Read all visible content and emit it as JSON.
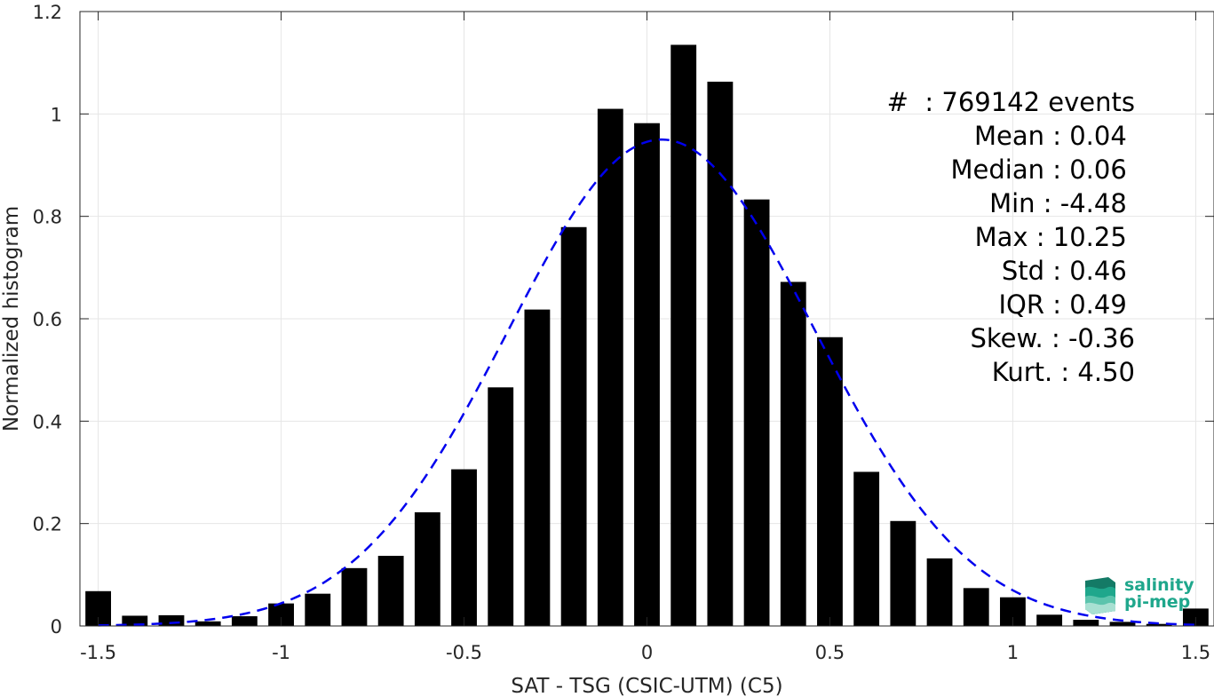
{
  "chart_data": {
    "type": "bar",
    "title": "",
    "xlabel": "SAT - TSG (CSIC-UTM) (C5)",
    "ylabel": "Normalized histogram",
    "xlim": [
      -1.55,
      1.55
    ],
    "ylim": [
      0,
      1.2
    ],
    "xticks": [
      -1.5,
      -1,
      -0.5,
      0,
      0.5,
      1,
      1.5
    ],
    "xtick_labels": [
      "-1.5",
      "-1",
      "-0.5",
      "0",
      "0.5",
      "1",
      "1.5"
    ],
    "yticks": [
      0,
      0.2,
      0.4,
      0.6,
      0.8,
      1,
      1.2
    ],
    "ytick_labels": [
      "0",
      "0.2",
      "0.4",
      "0.6",
      "0.8",
      "1",
      "1.2"
    ],
    "grid": true,
    "bar_width": 0.07,
    "bar_color": "#000000",
    "bins": [
      -1.5,
      -1.4,
      -1.3,
      -1.2,
      -1.1,
      -1.0,
      -0.9,
      -0.8,
      -0.7,
      -0.6,
      -0.5,
      -0.4,
      -0.3,
      -0.2,
      -0.1,
      0.0,
      0.1,
      0.2,
      0.3,
      0.4,
      0.5,
      0.6,
      0.7,
      0.8,
      0.9,
      1.0,
      1.1,
      1.2,
      1.3,
      1.4,
      1.5
    ],
    "values": [
      0.068,
      0.02,
      0.021,
      0.009,
      0.019,
      0.044,
      0.063,
      0.113,
      0.137,
      0.222,
      0.306,
      0.466,
      0.618,
      0.779,
      1.01,
      0.982,
      1.135,
      1.063,
      0.833,
      0.672,
      0.564,
      0.301,
      0.205,
      0.132,
      0.074,
      0.056,
      0.022,
      0.012,
      0.008,
      0.004,
      0.034
    ],
    "fit_curve": {
      "type": "gaussian",
      "style": "dashed",
      "color": "#0000ee",
      "mean": 0.04,
      "std": 0.42,
      "peak": 0.95
    },
    "stats": [
      "#  : 769142 events",
      "Mean : 0.04 ",
      "Median : 0.06 ",
      "Min : -4.48 ",
      "Max : 10.25 ",
      "Std : 0.46 ",
      "IQR : 0.49 ",
      "Skew. : -0.36",
      "Kurt. : 4.50"
    ]
  },
  "logo": {
    "line1": "salinity",
    "line2": "pi-mep",
    "color": "#1fa78c"
  }
}
